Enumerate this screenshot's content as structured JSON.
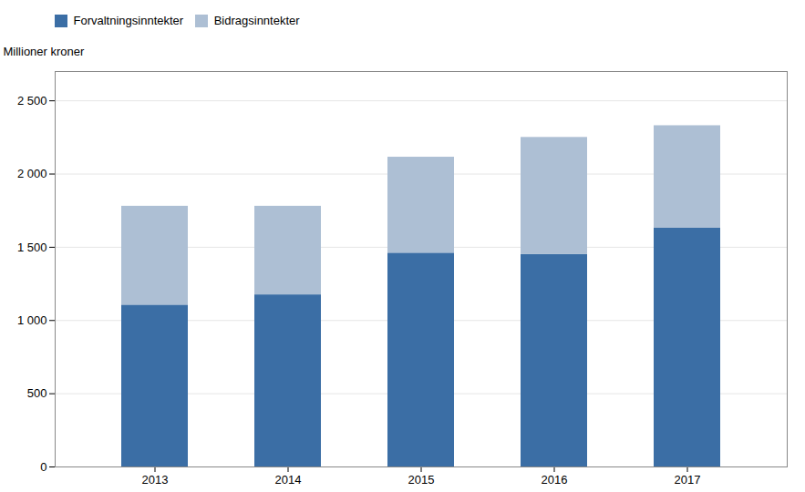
{
  "chart_data": {
    "type": "bar",
    "stacked": true,
    "categories": [
      "2013",
      "2014",
      "2015",
      "2016",
      "2017"
    ],
    "series": [
      {
        "name": "Forvaltningsinntekter",
        "color": "#3B6EA5",
        "values": [
          1105,
          1175,
          1460,
          1450,
          1630
        ]
      },
      {
        "name": "Bidragsinntekter",
        "color": "#ADBFD4",
        "values": [
          675,
          605,
          655,
          800,
          700
        ]
      }
    ],
    "ylabel": "Millioner kroner",
    "ylim": [
      0,
      2700
    ],
    "yticks": [
      0,
      500,
      {
        "value": 1000,
        "label": "1 000"
      },
      {
        "value": 1500,
        "label": "1 500"
      },
      {
        "value": 2000,
        "label": "2 000"
      },
      {
        "value": 2500,
        "label": "2 500"
      }
    ],
    "grid": true,
    "legend": "upper left"
  }
}
